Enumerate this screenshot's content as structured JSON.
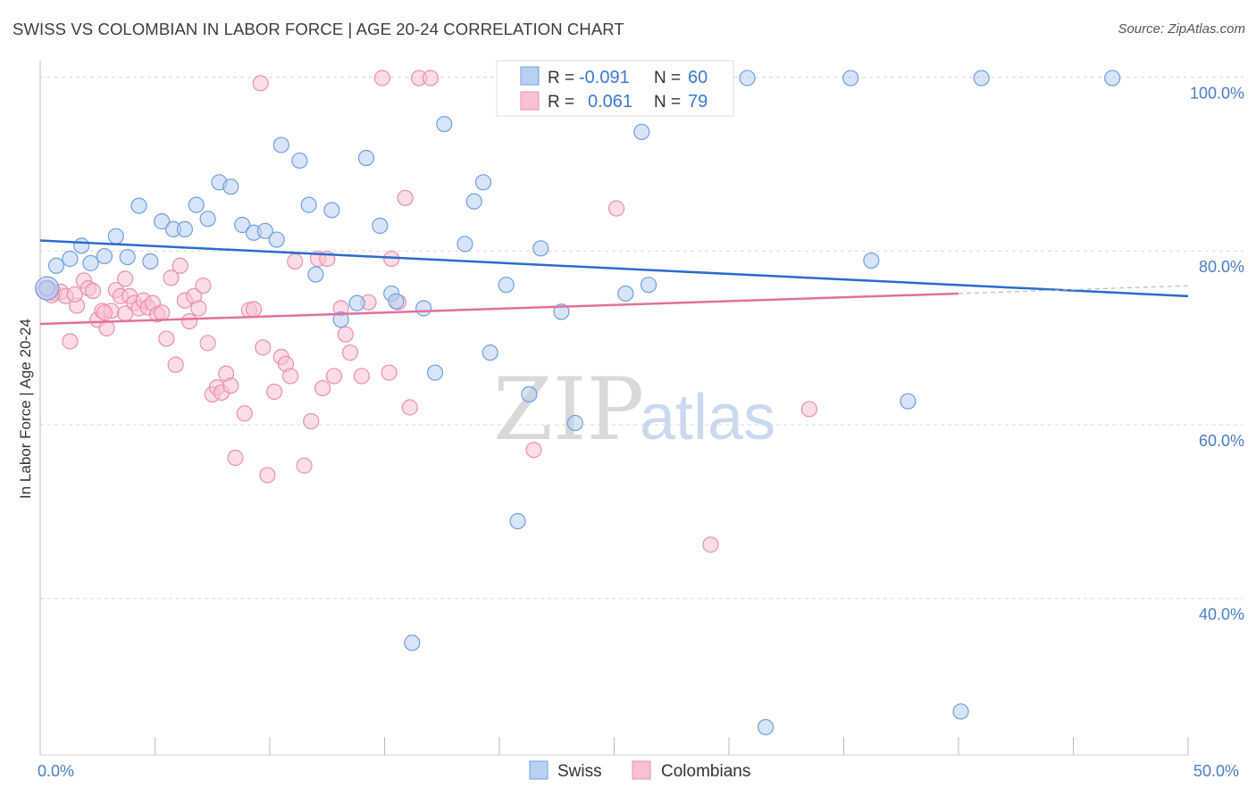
{
  "title": "SWISS VS COLOMBIAN IN LABOR FORCE | AGE 20-24 CORRELATION CHART",
  "source": "Source: ZipAtlas.com",
  "watermark": {
    "zip": "ZIP",
    "atlas": "atlas"
  },
  "colors": {
    "swiss_fill": "#b8d0f2",
    "swiss_stroke": "#6f9fdf",
    "swiss_line": "#2a6ccf",
    "col_fill": "#f7c1d2",
    "col_stroke": "#ea8fad",
    "col_line": "#e4709b",
    "grid": "#d8d8d8",
    "label_blue": "#4a7cc7"
  },
  "legend": {
    "rows": [
      {
        "r_label": "R = ",
        "r_value": "-0.091",
        "n_label": "N = ",
        "n_value": "60"
      },
      {
        "r_label": "R = ",
        "r_value": "0.061",
        "n_label": "N = ",
        "n_value": "79"
      }
    ]
  },
  "bottom_legend": [
    "Swiss",
    "Colombians"
  ],
  "chart_data": {
    "type": "scatter",
    "title": "SWISS VS COLOMBIAN IN LABOR FORCE | AGE 20-24 CORRELATION CHART",
    "xlabel": "",
    "ylabel": "In Labor Force | Age 20-24",
    "xlim": [
      0,
      50
    ],
    "ylim": [
      22,
      102
    ],
    "x_tick_labels": [
      "0.0%",
      "50.0%"
    ],
    "y_ticks": [
      100,
      80,
      60,
      40
    ],
    "y_tick_labels": [
      "100.0%",
      "80.0%",
      "60.0%",
      "40.0%"
    ],
    "grid": true,
    "legend_position": "top-center",
    "series": [
      {
        "name": "Swiss",
        "r": -0.091,
        "n": 60,
        "trend": {
          "x": [
            0,
            50
          ],
          "y": [
            81.2,
            74.8
          ]
        },
        "points": [
          [
            0.3,
            75.7
          ],
          [
            0.7,
            78.3
          ],
          [
            1.3,
            79.1
          ],
          [
            1.8,
            80.6
          ],
          [
            2.2,
            78.6
          ],
          [
            2.8,
            79.4
          ],
          [
            3.3,
            81.7
          ],
          [
            3.8,
            79.3
          ],
          [
            4.3,
            85.2
          ],
          [
            4.8,
            78.8
          ],
          [
            5.3,
            83.4
          ],
          [
            5.8,
            82.5
          ],
          [
            6.3,
            82.5
          ],
          [
            6.8,
            85.3
          ],
          [
            7.3,
            83.7
          ],
          [
            7.8,
            87.9
          ],
          [
            8.3,
            87.4
          ],
          [
            8.8,
            83
          ],
          [
            9.3,
            82.1
          ],
          [
            9.8,
            82.3
          ],
          [
            10.3,
            81.3
          ],
          [
            10.5,
            92.2
          ],
          [
            11.3,
            90.4
          ],
          [
            11.7,
            85.3
          ],
          [
            12,
            77.3
          ],
          [
            12.7,
            84.7
          ],
          [
            13.1,
            72.1
          ],
          [
            13.8,
            74
          ],
          [
            14.2,
            90.7
          ],
          [
            14.8,
            82.9
          ],
          [
            15.3,
            75.1
          ],
          [
            15.5,
            74.2
          ],
          [
            16.7,
            73.4
          ],
          [
            17.2,
            66
          ],
          [
            17.6,
            94.6
          ],
          [
            18.5,
            80.8
          ],
          [
            18.9,
            85.7
          ],
          [
            19.3,
            87.9
          ],
          [
            19.6,
            68.3
          ],
          [
            20.3,
            76.1
          ],
          [
            20.8,
            48.9
          ],
          [
            21.3,
            63.5
          ],
          [
            21.8,
            80.3
          ],
          [
            22,
            99.9
          ],
          [
            22.7,
            73
          ],
          [
            23.3,
            60.2
          ],
          [
            23.6,
            99.9
          ],
          [
            25,
            99.9
          ],
          [
            25.5,
            75.1
          ],
          [
            26.2,
            93.7
          ],
          [
            26.5,
            76.1
          ],
          [
            30.8,
            99.9
          ],
          [
            35.3,
            99.9
          ],
          [
            36.2,
            78.9
          ],
          [
            37.8,
            62.7
          ],
          [
            41,
            99.9
          ],
          [
            46.7,
            99.9
          ],
          [
            40.1,
            27
          ],
          [
            31.6,
            25.2
          ],
          [
            16.2,
            34.9
          ]
        ]
      },
      {
        "name": "Colombians",
        "r": 0.061,
        "n": 79,
        "trend": {
          "x": [
            0,
            40
          ],
          "y": [
            71.6,
            75.1
          ]
        },
        "trend_dashed": {
          "x": [
            40,
            50
          ],
          "y": [
            75.1,
            76
          ]
        },
        "points": [
          [
            0.3,
            75.5
          ],
          [
            0.6,
            75.2
          ],
          [
            0.9,
            75.3
          ],
          [
            1.1,
            74.8
          ],
          [
            1.3,
            69.6
          ],
          [
            1.6,
            73.7
          ],
          [
            1.9,
            76.6
          ],
          [
            2.1,
            75.7
          ],
          [
            2.3,
            75.4
          ],
          [
            2.5,
            72.1
          ],
          [
            2.7,
            73.1
          ],
          [
            2.9,
            71.1
          ],
          [
            3.1,
            73.1
          ],
          [
            3.3,
            75.5
          ],
          [
            3.5,
            74.8
          ],
          [
            3.7,
            72.8
          ],
          [
            3.9,
            74.8
          ],
          [
            4.1,
            74
          ],
          [
            4.3,
            73.4
          ],
          [
            4.5,
            74.3
          ],
          [
            4.7,
            73.5
          ],
          [
            4.9,
            74
          ],
          [
            5.1,
            72.7
          ],
          [
            5.3,
            72.9
          ],
          [
            5.5,
            69.9
          ],
          [
            5.7,
            76.9
          ],
          [
            5.9,
            66.9
          ],
          [
            6.1,
            78.3
          ],
          [
            6.3,
            74.3
          ],
          [
            6.5,
            71.9
          ],
          [
            6.7,
            74.8
          ],
          [
            6.9,
            73.4
          ],
          [
            7.1,
            76
          ],
          [
            7.3,
            69.4
          ],
          [
            7.5,
            63.5
          ],
          [
            7.7,
            64.3
          ],
          [
            7.9,
            63.7
          ],
          [
            8.1,
            65.9
          ],
          [
            8.3,
            64.5
          ],
          [
            8.5,
            56.2
          ],
          [
            8.9,
            61.3
          ],
          [
            9.1,
            73.2
          ],
          [
            9.3,
            73.3
          ],
          [
            9.7,
            68.9
          ],
          [
            9.9,
            54.2
          ],
          [
            10.2,
            63.8
          ],
          [
            10.5,
            67.8
          ],
          [
            10.7,
            67
          ],
          [
            10.9,
            65.6
          ],
          [
            11.1,
            78.8
          ],
          [
            11.5,
            55.3
          ],
          [
            11.8,
            60.4
          ],
          [
            12.1,
            79.1
          ],
          [
            12.3,
            64.2
          ],
          [
            12.5,
            79.1
          ],
          [
            12.8,
            65.6
          ],
          [
            13.1,
            73.4
          ],
          [
            13.3,
            70.4
          ],
          [
            13.5,
            68.3
          ],
          [
            14,
            65.6
          ],
          [
            14.3,
            74.1
          ],
          [
            15.2,
            66
          ],
          [
            15.6,
            74.1
          ],
          [
            16.1,
            62
          ],
          [
            15.3,
            79.1
          ],
          [
            15.9,
            86.1
          ],
          [
            16.5,
            99.9
          ],
          [
            17,
            99.9
          ],
          [
            14.9,
            99.9
          ],
          [
            9.6,
            99.3
          ],
          [
            21.5,
            57.1
          ],
          [
            25.1,
            84.9
          ],
          [
            28.5,
            99.9
          ],
          [
            29.2,
            46.2
          ],
          [
            33.5,
            61.8
          ],
          [
            1.5,
            75
          ],
          [
            0.5,
            74.9
          ],
          [
            2.8,
            72.9
          ],
          [
            3.7,
            76.8
          ]
        ]
      }
    ]
  }
}
